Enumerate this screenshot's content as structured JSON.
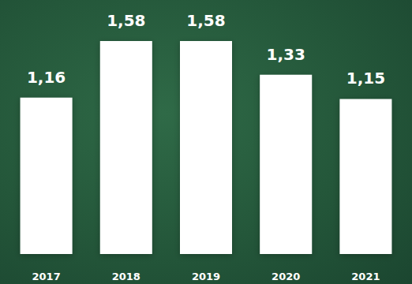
{
  "chart_data": {
    "type": "bar",
    "categories": [
      "2017",
      "2018",
      "2019",
      "2020",
      "2021"
    ],
    "values": [
      1.16,
      1.58,
      1.58,
      1.33,
      1.15
    ],
    "value_labels": [
      "1,16",
      "1,58",
      "1,58",
      "1,33",
      "1,15"
    ],
    "color": "#ffffff",
    "data_labels": true,
    "tick_labels": "x",
    "grid": false
  }
}
